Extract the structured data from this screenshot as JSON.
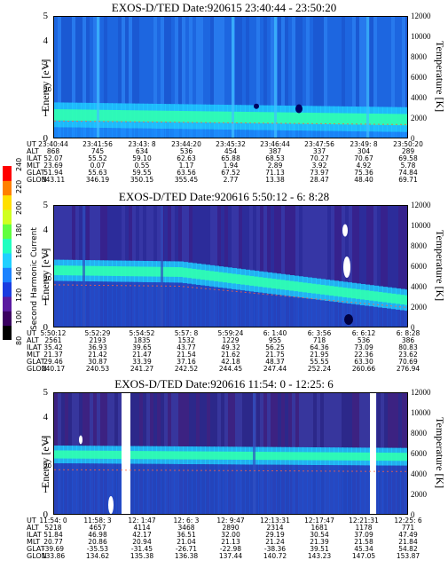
{
  "colorbar": {
    "label": "Second Harmonic Current",
    "ticks": [
      "80",
      "100",
      "120",
      "140",
      "160",
      "180",
      "200",
      "220",
      "240"
    ],
    "colors": [
      "#000000",
      "#3a0060",
      "#5a1aa0",
      "#1a3ce0",
      "#1a82ff",
      "#20d0ff",
      "#20ffc0",
      "#60ff40",
      "#d0ff20",
      "#ffe000",
      "#ff8000",
      "#ff0000"
    ]
  },
  "chart_data": [
    {
      "type": "heatmap",
      "title": "EXOS-D/TED   Date:920615  23:40:44 - 23:50:20",
      "ylabel": "Energy [eV]",
      "ylabel_right": "Temperature [K]",
      "ylim": [
        0,
        5
      ],
      "ylim_right": [
        0,
        12000
      ],
      "yticks": [
        "0",
        "1",
        "2",
        "3",
        "4",
        "5"
      ],
      "yticks_right": [
        "0",
        "2000",
        "4000",
        "6000",
        "8000",
        "10000",
        "12000"
      ],
      "rows": {
        "UT": [
          "23:40:44",
          "23:41:56",
          "23:43: 8",
          "23:44:20",
          "23:45:32",
          "23:46:44",
          "23:47:56",
          "23:49: 8",
          "23:50:20"
        ],
        "ALT": [
          "868",
          "745",
          "634",
          "536",
          "454",
          "387",
          "337",
          "304",
          "289"
        ],
        "ILAT": [
          "52.07",
          "55.52",
          "59.10",
          "62.63",
          "65.88",
          "68.53",
          "70.27",
          "70.67",
          "69.58"
        ],
        "MLT": [
          "23.69",
          "0.07",
          "0.55",
          "1.17",
          "1.94",
          "2.89",
          "3.92",
          "4.92",
          "5.78"
        ],
        "GLAT": [
          "51.94",
          "55.63",
          "59.55",
          "63.56",
          "67.52",
          "71.13",
          "73.97",
          "75.36",
          "74.84"
        ],
        "GLON": [
          "343.11",
          "346.19",
          "350.15",
          "355.45",
          "2.77",
          "13.38",
          "28.47",
          "48.40",
          "69.71"
        ]
      }
    },
    {
      "type": "heatmap",
      "title": "EXOS-D/TED   Date:920616  5:50:12 - 6: 8:28",
      "ylabel": "Energy [eV]",
      "ylabel_right": "Temperature [K]",
      "ylim": [
        0,
        5
      ],
      "ylim_right": [
        0,
        12000
      ],
      "yticks": [
        "0",
        "1",
        "2",
        "3",
        "4",
        "5"
      ],
      "yticks_right": [
        "0",
        "2000",
        "4000",
        "6000",
        "8000",
        "10000",
        "12000"
      ],
      "rows": {
        "UT": [
          "5:50:12",
          "5:52:29",
          "5:54:52",
          "5:57: 8",
          "5:59:24",
          "6: 1:40",
          "6: 3:56",
          "6: 6:12",
          "6: 8:28"
        ],
        "ALT": [
          "2561",
          "2193",
          "1835",
          "1532",
          "1229",
          "955",
          "718",
          "536",
          "386"
        ],
        "ILAT": [
          "35.42",
          "36.93",
          "39.65",
          "43.77",
          "49.32",
          "56.25",
          "64.36",
          "73.09",
          "80.83"
        ],
        "MLT": [
          "21.37",
          "21.42",
          "21.47",
          "21.54",
          "21.62",
          "21.75",
          "21.95",
          "22.36",
          "23.62"
        ],
        "GLAT": [
          "29.46",
          "30.87",
          "33.39",
          "37.16",
          "42.18",
          "48.37",
          "55.55",
          "63.30",
          "70.69"
        ],
        "GLON": [
          "240.17",
          "240.53",
          "241.27",
          "242.52",
          "244.45",
          "247.44",
          "252.24",
          "260.66",
          "276.94"
        ]
      }
    },
    {
      "type": "heatmap",
      "title": "EXOS-D/TED   Date:920616  11:54: 0 - 12:25: 6",
      "ylabel": "Energy [eV]",
      "ylabel_right": "Temperature [K]",
      "ylim": [
        0,
        5
      ],
      "ylim_right": [
        0,
        12000
      ],
      "yticks": [
        "0",
        "1",
        "2",
        "3",
        "4",
        "5"
      ],
      "yticks_right": [
        "0",
        "2000",
        "4000",
        "6000",
        "8000",
        "10000",
        "12000"
      ],
      "rows": {
        "UT": [
          "11:54: 0",
          "11:58: 3",
          "12: 1:47",
          "12: 6: 3",
          "12: 9:47",
          "12:13:31",
          "12:17:47",
          "12:21:31",
          "12:25: 6"
        ],
        "ALT": [
          "5218",
          "4657",
          "4114",
          "3468",
          "2890",
          "2314",
          "1681",
          "1178",
          "771"
        ],
        "ILAT": [
          "51.84",
          "46.98",
          "42.17",
          "36.51",
          "32.00",
          "29.19",
          "30.54",
          "37.09",
          "47.49"
        ],
        "MLT": [
          "20.77",
          "20.86",
          "20.94",
          "21.04",
          "21.13",
          "21.24",
          "21.39",
          "21.58",
          "21.84"
        ],
        "GLAT": [
          "-39.69",
          "-35.53",
          "-31.45",
          "-26.71",
          "-22.98",
          "-38.36",
          "39.51",
          "45.34",
          "54.82"
        ],
        "GLON": [
          "133.86",
          "134.62",
          "135.38",
          "136.38",
          "137.44",
          "140.72",
          "143.23",
          "147.05",
          "153.87"
        ]
      }
    }
  ]
}
